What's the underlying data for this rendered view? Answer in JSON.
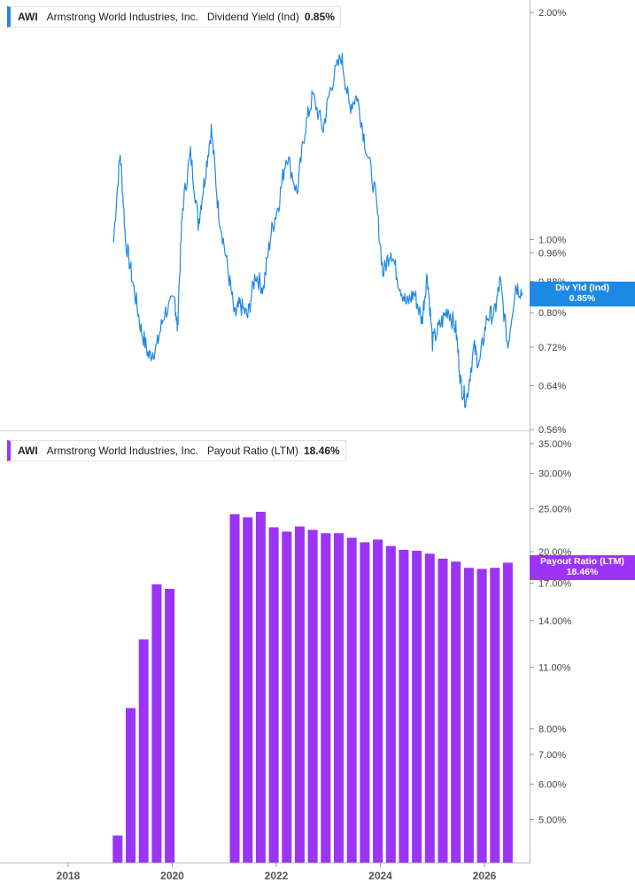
{
  "legend_top": {
    "ticker": "AWI",
    "company": "Armstrong World Industries, Inc.",
    "metric": "Dividend Yield (Ind)",
    "value": "0.85%"
  },
  "legend_bottom": {
    "ticker": "AWI",
    "company": "Armstrong World Industries, Inc.",
    "metric": "Payout Ratio (LTM)",
    "value": "18.46%"
  },
  "tag_top": {
    "label": "Div Yld (Ind)",
    "value": "0.85%"
  },
  "tag_bottom": {
    "label": "Payout Ratio (LTM)",
    "value": "18.46%"
  },
  "colors": {
    "dividend_yield": "#1e88e5",
    "payout_ratio": "#9b34f5"
  },
  "chart_data": [
    {
      "type": "line",
      "series": [
        {
          "name": "Dividend Yield (Ind)",
          "x": [
            2018.87,
            2019.0,
            2019.1,
            2019.25,
            2019.4,
            2019.55,
            2019.7,
            2019.85,
            2020.05,
            2020.1,
            2020.2,
            2020.35,
            2020.5,
            2020.62,
            2020.75,
            2020.88,
            2021.05,
            2021.2,
            2021.3,
            2021.45,
            2021.6,
            2021.75,
            2021.9,
            2022.05,
            2022.2,
            2022.4,
            2022.55,
            2022.7,
            2022.9,
            2023.05,
            2023.25,
            2023.4,
            2023.55,
            2023.7,
            2023.9,
            2024.05,
            2024.2,
            2024.35,
            2024.5,
            2024.65,
            2024.8,
            2024.9,
            2025.0,
            2025.15,
            2025.3,
            2025.45,
            2025.55,
            2025.65,
            2025.8,
            2025.9,
            2026.05,
            2026.2,
            2026.3,
            2026.45,
            2026.6,
            2026.73
          ],
          "values": [
            0.99,
            1.3,
            1.0,
            0.87,
            0.76,
            0.7,
            0.72,
            0.8,
            0.83,
            0.76,
            1.1,
            1.3,
            1.05,
            1.2,
            1.4,
            1.1,
            0.93,
            0.79,
            0.82,
            0.79,
            0.9,
            0.86,
            1.02,
            1.12,
            1.3,
            1.15,
            1.4,
            1.55,
            1.4,
            1.6,
            1.75,
            1.5,
            1.55,
            1.35,
            1.15,
            0.9,
            0.97,
            0.88,
            0.82,
            0.85,
            0.78,
            0.9,
            0.73,
            0.77,
            0.81,
            0.76,
            0.64,
            0.61,
            0.72,
            0.68,
            0.79,
            0.8,
            0.88,
            0.72,
            0.87,
            0.85
          ]
        }
      ],
      "axis_labels": [
        "2.00%",
        "1.00%",
        "0.96%",
        "0.88%",
        "0.80%",
        "0.72%",
        "0.64%",
        "0.56%"
      ],
      "axis_values": [
        2.0,
        1.0,
        0.96,
        0.88,
        0.8,
        0.72,
        0.64,
        0.56
      ],
      "ylim": [
        0.56,
        2.0
      ],
      "y_scale": "log",
      "grid": false
    },
    {
      "type": "bar",
      "series": [
        {
          "name": "Payout Ratio (LTM)",
          "x": [
            2018.95,
            2019.2,
            2019.45,
            2019.7,
            2019.95,
            2021.2,
            2021.45,
            2021.7,
            2021.95,
            2022.2,
            2022.45,
            2022.7,
            2022.95,
            2023.2,
            2023.45,
            2023.7,
            2023.95,
            2024.2,
            2024.45,
            2024.7,
            2024.95,
            2025.2,
            2025.45,
            2025.7,
            2025.95,
            2026.2,
            2026.45
          ],
          "values": [
            4.6,
            8.9,
            12.7,
            16.9,
            16.5,
            24.3,
            23.9,
            24.6,
            22.7,
            22.2,
            22.8,
            22.4,
            22.0,
            22.0,
            21.5,
            21.0,
            21.3,
            20.6,
            20.2,
            20.1,
            19.8,
            19.3,
            19.0,
            18.4,
            18.3,
            18.4,
            18.9
          ]
        }
      ],
      "axis_labels": [
        "35.00%",
        "30.00%",
        "25.00%",
        "20.00%",
        "17.00%",
        "14.00%",
        "11.00%",
        "8.00%",
        "7.00%",
        "6.00%",
        "5.00%"
      ],
      "axis_values": [
        35,
        30,
        25,
        20,
        17,
        14,
        11,
        8,
        7,
        6,
        5
      ],
      "ylim": [
        4,
        35
      ],
      "y_scale": "log",
      "grid": false
    }
  ],
  "x_axis": {
    "labels": [
      "2018",
      "2020",
      "2022",
      "2024",
      "2026"
    ],
    "values": [
      2018,
      2020,
      2022,
      2024,
      2026
    ]
  }
}
